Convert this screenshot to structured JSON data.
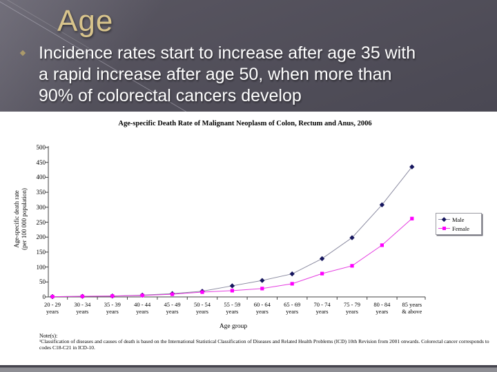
{
  "slide": {
    "title": "Age",
    "bullet_lines": [
      "Incidence rates start to increase after age 35 with",
      "a rapid increase after age 50, when more than",
      "90% of colorectal cancers develop"
    ]
  },
  "colors": {
    "title_gold": "#d8c48c",
    "axis": "#404040",
    "male_marker": "#16165e",
    "male_line": "#8a8aa0",
    "female_marker": "#ff00ff",
    "female_line": "#e43be0"
  },
  "chart_data": {
    "type": "line",
    "title": "Age-specific Death Rate of Malignant Neoplasm of Colon, Rectum and Anus, 2006",
    "xlabel": "Age group",
    "ylabel_lines": [
      "Age-specific death rate",
      "(per 100 000 population)"
    ],
    "ylim": [
      0,
      500
    ],
    "ytick_step": 50,
    "grid": false,
    "legend_position": "right",
    "categories": [
      "20 - 29 years",
      "30 - 34 years",
      "35 - 39 years",
      "40 - 44 years",
      "45 - 49 years",
      "50 - 54 years",
      "55 - 59 years",
      "60 - 64 years",
      "65 - 69 years",
      "70 - 74 years",
      "75 - 79 years",
      "80 - 84 years",
      "85 years & above"
    ],
    "category_tick_lines": [
      [
        "20 - 29",
        "years"
      ],
      [
        "30 - 34",
        "years"
      ],
      [
        "35 - 39",
        "years"
      ],
      [
        "40 - 44",
        "years"
      ],
      [
        "45 - 49",
        "years"
      ],
      [
        "50 - 54",
        "years"
      ],
      [
        "55 - 59",
        "years"
      ],
      [
        "60 - 64",
        "years"
      ],
      [
        "65 - 69",
        "years"
      ],
      [
        "70 - 74",
        "years"
      ],
      [
        "75 - 79",
        "years"
      ],
      [
        "80 - 84",
        "years"
      ],
      [
        "85 years",
        "& above"
      ]
    ],
    "series": [
      {
        "name": "Male",
        "values": [
          1,
          2,
          3,
          6,
          11,
          19,
          37,
          55,
          77,
          128,
          198,
          308,
          435
        ]
      },
      {
        "name": "Female",
        "values": [
          1,
          2,
          3,
          5,
          9,
          16,
          21,
          28,
          44,
          78,
          104,
          173,
          262
        ]
      }
    ],
    "note_heading": "Note(s):",
    "note": "¹Classification of diseases and causes of death is based on the International Statistical Classification of Diseases and Related Health Problems (ICD) 10th Revision from 2001 onwards. Colorectal cancer corresponds to codes C18-C21 in ICD-10."
  }
}
